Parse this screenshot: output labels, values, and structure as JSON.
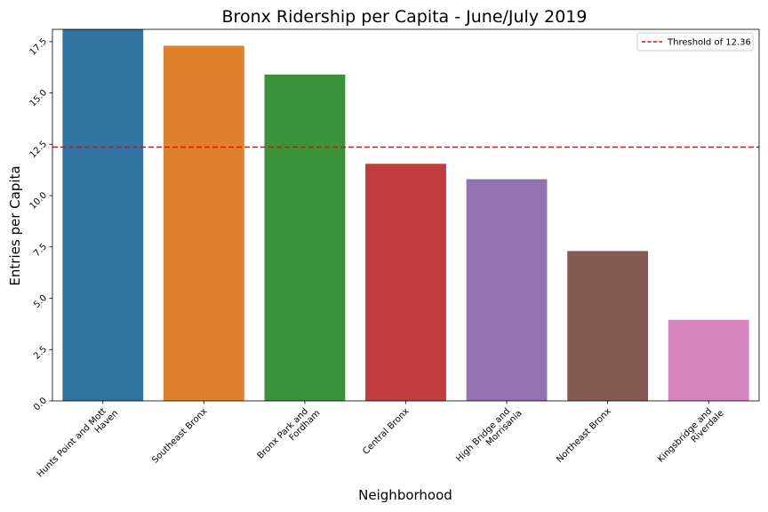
{
  "chart_data": {
    "type": "bar",
    "title": "Bronx Ridership per Capita - June/July 2019",
    "xlabel": "Neighborhood",
    "ylabel": "Entries per Capita",
    "ylim": [
      0,
      18.1
    ],
    "yticks": [
      "0.0",
      "2.5",
      "5.0",
      "7.5",
      "10.0",
      "12.5",
      "15.0",
      "17.5"
    ],
    "categories": [
      [
        "Hunts Point and Mott",
        "Haven"
      ],
      [
        "Southeast Bronx"
      ],
      [
        "Bronx Park and",
        "Fordham"
      ],
      [
        "Central Bronx"
      ],
      [
        "High Bridge and",
        "Morrisania"
      ],
      [
        "Northeast Bronx"
      ],
      [
        "Kingsbridge and",
        "Riverdale"
      ]
    ],
    "values": [
      18.1,
      17.3,
      15.9,
      11.55,
      10.8,
      7.3,
      3.95
    ],
    "colors": [
      "#3274a1",
      "#e1812c",
      "#3a923a",
      "#c03d3e",
      "#9372b2",
      "#845b53",
      "#d684bd"
    ],
    "threshold": {
      "value": 12.36,
      "label": "Threshold of 12.36",
      "color": "#ff0000"
    },
    "legend_position": "top-right",
    "grid": false
  }
}
